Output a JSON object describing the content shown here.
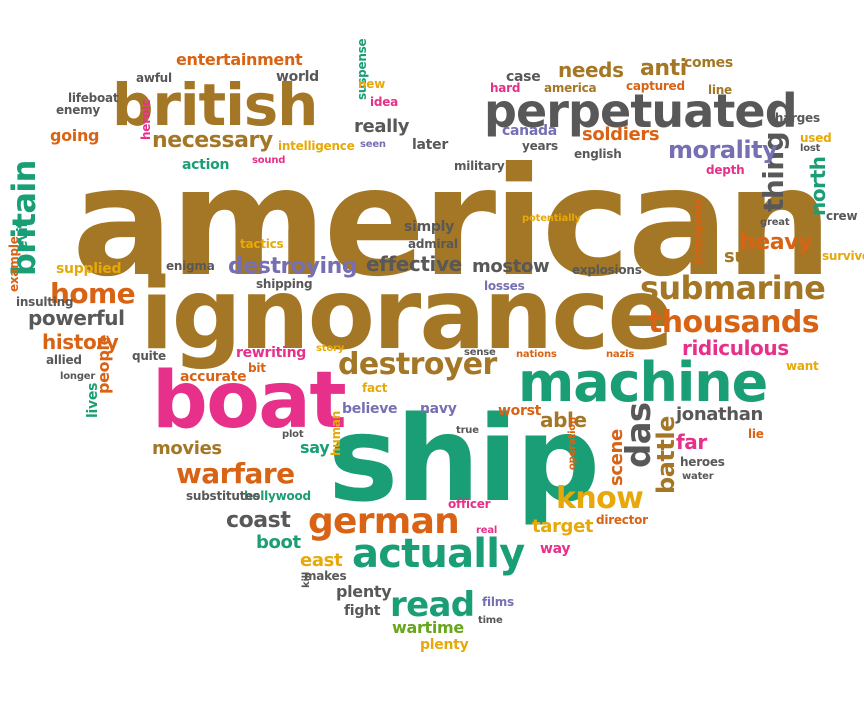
{
  "palette": {
    "gold": "#a47726",
    "green": "#1a9e75",
    "orange": "#d96314",
    "pink": "#e6308a",
    "gray": "#585858",
    "purple": "#7570b3",
    "yellow": "#e7a90a",
    "lime": "#68a61c"
  },
  "words": [
    "american",
    "ship",
    "ignorance",
    "boat",
    "british",
    "machine",
    "perpetuated",
    "submarine",
    "actually",
    "thousands",
    "german",
    "destroyer",
    "warfare",
    "das",
    "britain",
    "home",
    "read",
    "know",
    "necessary",
    "destroying",
    "ridiculous",
    "battle",
    "thing",
    "morality",
    "powerful",
    "coast",
    "jonathan",
    "history",
    "movies",
    "effective",
    "mostow",
    "heavy",
    "north",
    "far",
    "scene",
    "able",
    "really",
    "needs",
    "anti",
    "soldiers",
    "target",
    "sub",
    "wartime",
    "plenty",
    "fight",
    "boot",
    "east",
    "going",
    "entertainment",
    "intelligence",
    "rewriting",
    "accurate",
    "believe",
    "say",
    "navy",
    "worst",
    "supplied",
    "people",
    "lives",
    "enigma",
    "action",
    "later",
    "simply",
    "captured",
    "america",
    "films",
    "way",
    "plenty",
    "time",
    "fact",
    "hollywood",
    "substitutes",
    "officer",
    "director",
    "heroes",
    "water",
    "used",
    "lost",
    "crew",
    "great",
    "survivors",
    "want",
    "quite",
    "allied",
    "longer",
    "story",
    "sense",
    "nations",
    "nazis",
    "lie",
    "plot",
    "human",
    "true",
    "operation",
    "potentially",
    "propaganda",
    "explosions",
    "losses",
    "admiral",
    "tactics",
    "shipping",
    "sound",
    "canada",
    "years",
    "military",
    "english",
    "depth",
    "charges",
    "comes",
    "case",
    "hard",
    "suspense",
    "idea",
    "new",
    "world",
    "awful",
    "lifeboat",
    "enemy",
    "heroic",
    "seen",
    "example",
    "evil",
    "insulting",
    "real",
    "kill",
    "makes",
    "line",
    "bit",
    "supply"
  ]
}
